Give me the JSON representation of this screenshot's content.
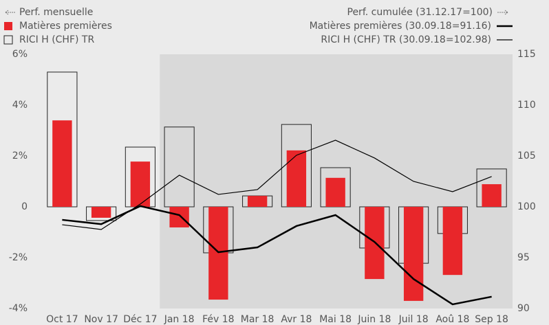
{
  "chart_data": {
    "type": "bar",
    "y_label": "Perf. mensuelle",
    "y2_label": "Perf. cumulée (31.12.17=100)",
    "categories": [
      "Oct 17",
      "Nov 17",
      "Déc 17",
      "Jan 18",
      "Fév 18",
      "Mar 18",
      "Avr 18",
      "Mai 18",
      "Juin 18",
      "Juil 18",
      "Aoû 18",
      "Sep 18"
    ],
    "shade_from": "Jan 18",
    "series": [
      {
        "name": "RICI H (CHF) TR",
        "style": "outline",
        "color": "#222222",
        "axis": "y",
        "values": [
          5.3,
          -0.54,
          2.35,
          3.14,
          -1.81,
          0.43,
          3.24,
          1.54,
          -1.62,
          -2.22,
          -1.05,
          1.49
        ]
      },
      {
        "name": "Matières premières",
        "style": "filled",
        "color": "#e8262a",
        "axis": "y",
        "values": [
          3.4,
          -0.43,
          1.78,
          -0.81,
          -3.65,
          0.43,
          2.22,
          1.14,
          -2.84,
          -3.7,
          -2.68,
          0.89
        ]
      },
      {
        "name": "Matières premières (30.09.18=91.16)",
        "style": "line",
        "width": 2.5,
        "color": "#000000",
        "axis": "y2",
        "values": [
          98.72,
          98.3,
          100.07,
          99.19,
          95.54,
          96.01,
          98.11,
          99.19,
          96.55,
          92.9,
          90.41,
          91.16
        ]
      },
      {
        "name": "RICI H (CHF) TR (30.09.18=102.98)",
        "style": "line",
        "width": 1.2,
        "color": "#000000",
        "axis": "y2",
        "values": [
          98.24,
          97.77,
          100.27,
          103.11,
          101.22,
          101.69,
          105.07,
          106.55,
          104.8,
          102.5,
          101.49,
          102.98
        ]
      }
    ],
    "ylim": [
      -4,
      6
    ],
    "yticks": [
      {
        "value": -4,
        "label": "-4%"
      },
      {
        "value": -2,
        "label": "-2%"
      },
      0,
      {
        "value": 2,
        "label": "2%"
      },
      {
        "value": 4,
        "label": "4%"
      },
      {
        "value": 6,
        "label": "6%"
      }
    ],
    "y2lim": [
      90,
      115
    ],
    "y2ticks": [
      90,
      95,
      100,
      105,
      110,
      115
    ],
    "grid": false
  }
}
